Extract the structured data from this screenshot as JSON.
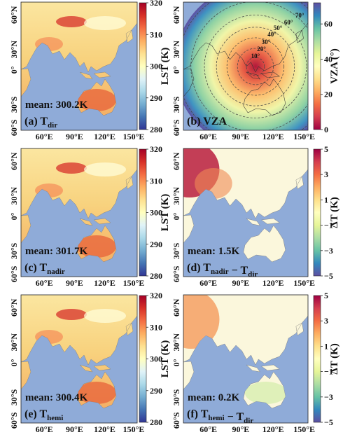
{
  "xtick_labels": [
    "60°E",
    "90°E",
    "120°E",
    "150°E"
  ],
  "ytick_labels": [
    "60°N",
    "30°N",
    "0°",
    "30°S",
    "60°S"
  ],
  "panels": [
    {
      "label_parts": [
        {
          "text": "(a) T",
          "sub": "dir"
        }
      ],
      "mean": "mean: 300.2K",
      "colorbar": {
        "label": "LST (K)",
        "lim": [
          280,
          320
        ],
        "ticks": [
          280,
          290,
          300,
          310,
          320
        ],
        "colors": [
          "#313695",
          "#4575b4",
          "#74add1",
          "#abd9e9",
          "#e0f3f8",
          "#ffffbf",
          "#fee090",
          "#fdae61",
          "#f46d43",
          "#d73027",
          "#a50026"
        ]
      }
    },
    {
      "label_parts": [
        {
          "text": "(b) VZA"
        }
      ],
      "contour_labels": [
        "10°",
        "20°",
        "30°",
        "40°",
        "50°",
        "60°",
        "70°"
      ],
      "colorbar": {
        "label": "VZA (°)",
        "lim": [
          0,
          72
        ],
        "ticks": [
          0,
          20,
          40,
          60
        ],
        "colors": [
          "#9e0142",
          "#d53e4f",
          "#f46d43",
          "#fdae61",
          "#fee08b",
          "#ffffbf",
          "#e6f598",
          "#abdda4",
          "#66c2a5",
          "#3288bd",
          "#5e4fa2"
        ]
      }
    },
    {
      "label_parts": [
        {
          "text": "(c) T",
          "sub": "nadir"
        }
      ],
      "mean": "mean: 301.7K",
      "colorbar": {
        "label": "LST (K)",
        "lim": [
          280,
          320
        ],
        "ticks": [
          280,
          290,
          300,
          310,
          320
        ],
        "colors": [
          "#313695",
          "#4575b4",
          "#74add1",
          "#abd9e9",
          "#e0f3f8",
          "#ffffbf",
          "#fee090",
          "#fdae61",
          "#f46d43",
          "#d73027",
          "#a50026"
        ]
      }
    },
    {
      "label_parts": [
        {
          "text": "(d) T",
          "sub": "nadir"
        },
        {
          "text": " − T",
          "sub": "dir"
        }
      ],
      "mean": "mean: 1.5K",
      "colorbar": {
        "label": "ΔT (K)",
        "lim": [
          -5,
          5
        ],
        "ticks": [
          {
            "value": -5,
            "label": "−5"
          },
          {
            "value": -3,
            "label": "−3"
          },
          {
            "value": -1,
            "label": "−1"
          },
          1,
          3,
          5
        ],
        "colors": [
          "#5e4fa2",
          "#3288bd",
          "#66c2a5",
          "#abdda4",
          "#e6f598",
          "#ffffbf",
          "#fee08b",
          "#fdae61",
          "#f46d43",
          "#d53e4f",
          "#9e0142"
        ]
      }
    },
    {
      "label_parts": [
        {
          "text": "(e) T",
          "sub": "hemi"
        }
      ],
      "mean": "mean: 300.4K",
      "colorbar": {
        "label": "LST (K)",
        "lim": [
          280,
          320
        ],
        "ticks": [
          280,
          290,
          300,
          310,
          320
        ],
        "colors": [
          "#313695",
          "#4575b4",
          "#74add1",
          "#abd9e9",
          "#e0f3f8",
          "#ffffbf",
          "#fee090",
          "#fdae61",
          "#f46d43",
          "#d73027",
          "#a50026"
        ]
      }
    },
    {
      "label_parts": [
        {
          "text": "(f) T",
          "sub": "hemi"
        },
        {
          "text": " − T",
          "sub": "dir"
        }
      ],
      "mean": "mean: 0.2K",
      "colorbar": {
        "label": "ΔT (K)",
        "lim": [
          -5,
          5
        ],
        "ticks": [
          {
            "value": -5,
            "label": "−5"
          },
          {
            "value": -3,
            "label": "−3"
          },
          {
            "value": -1,
            "label": "−1"
          },
          1,
          3,
          5
        ],
        "colors": [
          "#5e4fa2",
          "#3288bd",
          "#66c2a5",
          "#abdda4",
          "#e6f598",
          "#ffffbf",
          "#fee08b",
          "#fdae61",
          "#f46d43",
          "#d53e4f",
          "#9e0142"
        ]
      }
    }
  ]
}
